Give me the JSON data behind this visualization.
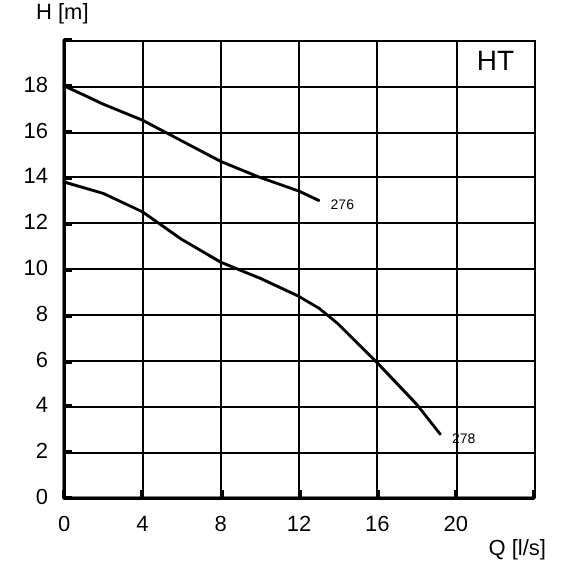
{
  "chart_data": {
    "type": "line",
    "xlabel": "Q [l/s]",
    "ylabel": "H [m]",
    "annotations": [
      "HT"
    ],
    "xlim": [
      0,
      24
    ],
    "xticks": [
      0,
      4,
      8,
      12,
      16,
      20,
      {
        "value": 24,
        "label": null
      }
    ],
    "ylim": [
      0,
      20
    ],
    "yticks": [
      0,
      2,
      4,
      6,
      8,
      10,
      12,
      14,
      16,
      18,
      {
        "value": 20,
        "label": null
      }
    ],
    "grid": true,
    "marker": "none",
    "line_style": "solid",
    "legend": false,
    "series": [
      {
        "name": "276",
        "color": "#000000",
        "x": [
          0,
          1,
          2,
          4,
          6,
          8,
          10,
          12,
          13
        ],
        "values": [
          18,
          17.6,
          17.2,
          16.5,
          15.6,
          14.7,
          14,
          13.4,
          13
        ]
      },
      {
        "name": "278",
        "color": "#000000",
        "x": [
          0,
          2,
          4,
          6,
          8,
          10,
          12,
          13,
          14,
          16,
          18,
          19.2
        ],
        "values": [
          13.8,
          13.3,
          12.5,
          11.3,
          10.3,
          9.6,
          8.8,
          8.3,
          7.6,
          5.9,
          4.1,
          2.8
        ]
      }
    ]
  }
}
